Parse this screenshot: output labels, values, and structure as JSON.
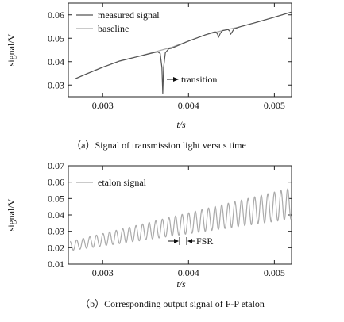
{
  "chart_data": [
    {
      "type": "line",
      "xlabel": "t/s",
      "ylabel": "signal/V",
      "xlim": [
        0.0026,
        0.0052
      ],
      "ylim": [
        0.025,
        0.065
      ],
      "xticks": [
        {
          "value": 0.003,
          "label": "0.003"
        },
        {
          "value": 0.004,
          "label": "0.004"
        },
        {
          "value": 0.005,
          "label": "0.005"
        }
      ],
      "yticks": [
        {
          "value": 0.03,
          "label": "0.03"
        },
        {
          "value": 0.04,
          "label": "0.04"
        },
        {
          "value": 0.05,
          "label": "0.05"
        },
        {
          "value": 0.06,
          "label": "0.06"
        }
      ],
      "legend_position": "top-left",
      "series": [
        {
          "name": "measured signal",
          "color": "#555555",
          "x": [
            0.00268,
            0.0028,
            0.003,
            0.0032,
            0.0034,
            0.0036,
            0.00364,
            0.00367,
            0.00369,
            0.0037,
            0.00371,
            0.00373,
            0.00377,
            0.0038,
            0.004,
            0.0042,
            0.0043,
            0.00432,
            0.00434,
            0.00435,
            0.00437,
            0.00439,
            0.0044,
            0.00446,
            0.00448,
            0.00449,
            0.00451,
            0.00453,
            0.0046,
            0.0048,
            0.005,
            0.0052
          ],
          "y": [
            0.0327,
            0.0346,
            0.0376,
            0.0403,
            0.0421,
            0.0439,
            0.0442,
            0.0435,
            0.0375,
            0.0265,
            0.0375,
            0.0438,
            0.0455,
            0.0457,
            0.0488,
            0.0515,
            0.0527,
            0.0527,
            0.0516,
            0.0504,
            0.0521,
            0.0531,
            0.0533,
            0.0537,
            0.0531,
            0.0517,
            0.0528,
            0.054,
            0.0549,
            0.0569,
            0.059,
            0.0612
          ]
        },
        {
          "name": "baseline",
          "color": "#aaaaaa",
          "x": [
            0.00268,
            0.0028,
            0.003,
            0.0032,
            0.0034,
            0.0036,
            0.0038,
            0.004,
            0.0042,
            0.0044,
            0.0046,
            0.0048,
            0.005,
            0.0052
          ],
          "y": [
            0.0327,
            0.0346,
            0.0376,
            0.0403,
            0.0421,
            0.0441,
            0.0461,
            0.0488,
            0.0515,
            0.0533,
            0.0549,
            0.0569,
            0.059,
            0.0612
          ]
        }
      ],
      "annotations": [
        {
          "text": "transition",
          "arrow_from": [
            0.00378,
            0.0349
          ],
          "arrow_to": [
            0.00385,
            0.0349
          ]
        }
      ],
      "caption": "（a）Signal of transmission light versus time"
    },
    {
      "type": "line",
      "xlabel": "t/s",
      "ylabel": "signal/V",
      "xlim": [
        0.0026,
        0.0052
      ],
      "ylim": [
        0.01,
        0.07
      ],
      "xticks": [
        {
          "value": 0.003,
          "label": "0.003"
        },
        {
          "value": 0.004,
          "label": "0.004"
        },
        {
          "value": 0.005,
          "label": "0.005"
        }
      ],
      "yticks": [
        {
          "value": 0.01,
          "label": "0.01"
        },
        {
          "value": 0.02,
          "label": "0.02"
        },
        {
          "value": 0.03,
          "label": "0.03"
        },
        {
          "value": 0.04,
          "label": "0.04"
        },
        {
          "value": 0.05,
          "label": "0.05"
        },
        {
          "value": 0.06,
          "label": "0.06"
        },
        {
          "value": 0.07,
          "label": "0.07"
        }
      ],
      "legend_position": "top-left",
      "series": [
        {
          "name": "etalon signal",
          "color": "#aaaaaa",
          "oscillation": {
            "x_start": 0.00262,
            "x_end": 0.0052,
            "period_s": 7.68e-05,
            "low_start": 0.0182,
            "low_end": 0.0375,
            "high_start": 0.0238,
            "high_end": 0.0565
          }
        }
      ],
      "annotations": [
        {
          "text": "FSR",
          "fsr_start": 0.00383,
          "fsr_end": 0.003907,
          "y": 0.0203
        }
      ],
      "caption": "（b）Corresponding output signal of F-P etalon"
    }
  ]
}
